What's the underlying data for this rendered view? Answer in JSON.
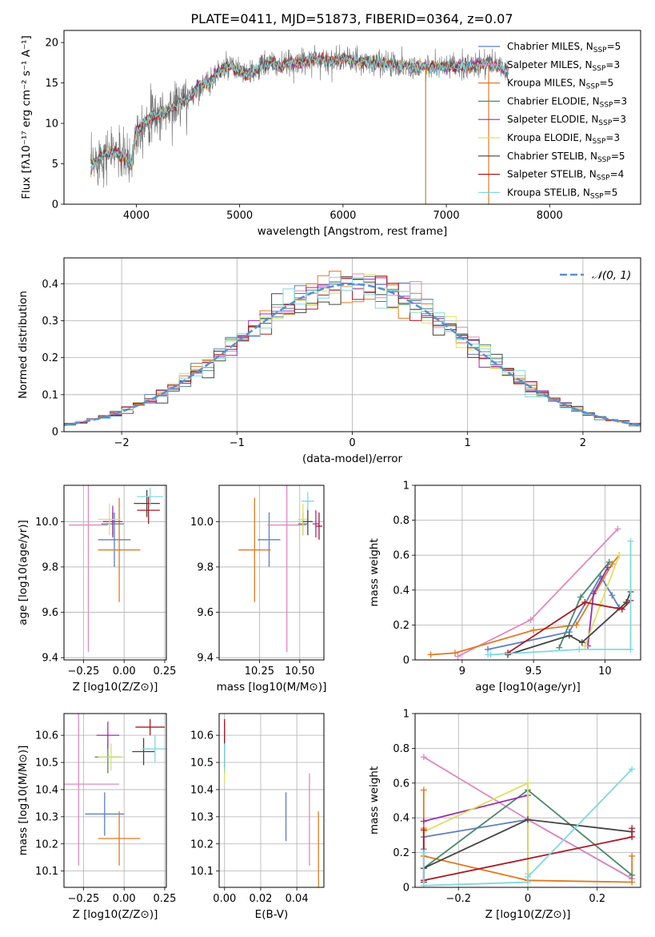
{
  "title": "PLATE=0411, MJD=51873, FIBERID=0364, z=0.07",
  "chart_data": [
    {
      "type": "line",
      "panel": "spectrum",
      "xlabel": "wavelength [Angstrom, rest frame]",
      "ylabel": "Flux [fλ10⁻¹⁷ erg cm⁻² s⁻¹ A⁻¹]",
      "xlim": [
        3300,
        8880
      ],
      "ylim": [
        0,
        21.5
      ],
      "xticks": [
        4000,
        5000,
        6000,
        7000,
        8000
      ],
      "yticks": [
        0,
        5,
        10,
        15,
        20
      ],
      "grid": false,
      "legend_position": "right",
      "data_envelope": {
        "x": [
          3560,
          3650,
          3800,
          3950,
          4000,
          4100,
          4200,
          4300,
          4400,
          4500,
          4600,
          4700,
          4800,
          4900,
          5000,
          5100,
          5200,
          5300,
          5400,
          5500,
          5600,
          5700,
          5800,
          5900,
          6000,
          6200,
          6400,
          6600,
          6800,
          7000,
          7200,
          7400,
          7600
        ],
        "y": [
          4.5,
          6,
          6.5,
          5,
          9,
          10.5,
          11,
          11.5,
          12.5,
          13,
          14.5,
          15,
          16.5,
          17,
          16.5,
          16,
          17,
          17.5,
          17,
          17.5,
          17.5,
          18,
          18,
          17.5,
          18,
          17.5,
          17.5,
          17,
          17,
          17,
          17,
          17.5,
          16.5
        ]
      },
      "series": [
        {
          "name": "Chabrier MILES, N_SSP=5",
          "color": "#5b7fbf"
        },
        {
          "name": "Salpeter MILES, N_SSP=3",
          "color": "#e088c0"
        },
        {
          "name": "Kroupa MILES, N_SSP=5",
          "color": "#e07a22"
        },
        {
          "name": "Chabrier ELODIE, N_SSP=3",
          "color": "#4a8a6a"
        },
        {
          "name": "Salpeter ELODIE, N_SSP=3",
          "color": "#9a2db0"
        },
        {
          "name": "Kroupa ELODIE, N_SSP=3",
          "color": "#dde060"
        },
        {
          "name": "Chabrier STELIB, N_SSP=5",
          "color": "#444444"
        },
        {
          "name": "Salpeter STELIB, N_SSP=4",
          "color": "#aa1a22"
        },
        {
          "name": "Kroupa STELIB, N_SSP=5",
          "color": "#80d8e0"
        }
      ]
    },
    {
      "type": "area",
      "panel": "residuals",
      "xlabel": "(data-model)/error",
      "ylabel": "Normed distribution",
      "xlim": [
        -2.5,
        2.5
      ],
      "ylim": [
        0,
        0.47
      ],
      "xticks": [
        -2,
        -1,
        0,
        1,
        2
      ],
      "yticks": [
        0.0,
        0.1,
        0.2,
        0.3,
        0.4
      ],
      "grid": true,
      "legend": [
        "𝒩(0, 1)"
      ],
      "legend_position": "top-right",
      "normal_curve": {
        "name": "𝒩(0, 1)",
        "mean": 0,
        "sigma": 1
      },
      "histogram_bin_width": 0.1
    },
    {
      "type": "scatter",
      "panel": "age-vs-Z",
      "xlabel": "Z [log10(Z/Z⊙)]",
      "ylabel": "age [log10(age/yr)]",
      "xlim": [
        -0.37,
        0.26
      ],
      "ylim": [
        9.39,
        10.16
      ],
      "xticks": [
        "-0.25",
        "0.00",
        "0.25"
      ],
      "yticks": [
        "9.4",
        "9.6",
        "9.8",
        "10.0"
      ],
      "grid": true,
      "points": [
        {
          "x": -0.06,
          "xerr": 0.1,
          "y": 9.92,
          "yerr": 0.12,
          "color": "#5b7fbf"
        },
        {
          "x": -0.22,
          "xerr": 0.12,
          "y": 9.985,
          "yerr": 0.56,
          "color": "#e088c0"
        },
        {
          "x": -0.03,
          "xerr": 0.13,
          "y": 9.875,
          "yerr": 0.23,
          "color": "#e07a22"
        },
        {
          "x": -0.07,
          "xerr": 0.07,
          "y": 9.99,
          "yerr": 0.05,
          "color": "#4a8a6a"
        },
        {
          "x": -0.07,
          "xerr": 0.06,
          "y": 10.0,
          "yerr": 0.07,
          "color": "#9a2db0"
        },
        {
          "x": -0.09,
          "xerr": 0.07,
          "y": 10.01,
          "yerr": 0.07,
          "color": "#dde060"
        },
        {
          "x": 0.14,
          "xerr": 0.08,
          "y": 10.08,
          "yerr": 0.06,
          "color": "#444444"
        },
        {
          "x": 0.15,
          "xerr": 0.07,
          "y": 10.05,
          "yerr": 0.06,
          "color": "#aa1a22"
        },
        {
          "x": 0.16,
          "xerr": 0.08,
          "y": 10.11,
          "yerr": 0.04,
          "color": "#80d8e0"
        }
      ]
    },
    {
      "type": "scatter",
      "panel": "age-vs-mass",
      "xlabel": "mass [log10(M/M⊙)]",
      "ylabel": "",
      "xlim": [
        10.0,
        10.65
      ],
      "ylim": [
        9.39,
        10.16
      ],
      "xticks": [
        "10.25",
        "10.50"
      ],
      "yticks": [
        "9.4",
        "9.6",
        "9.8",
        "10.0"
      ],
      "grid": true,
      "points": [
        {
          "x": 10.31,
          "xerr": 0.07,
          "y": 9.92,
          "yerr": 0.12,
          "color": "#5b7fbf"
        },
        {
          "x": 10.42,
          "xerr": 0.12,
          "y": 9.985,
          "yerr": 0.56,
          "color": "#e088c0"
        },
        {
          "x": 10.22,
          "xerr": 0.1,
          "y": 9.875,
          "yerr": 0.23,
          "color": "#e07a22"
        },
        {
          "x": 10.52,
          "xerr": 0.03,
          "y": 9.99,
          "yerr": 0.05,
          "color": "#4a8a6a"
        },
        {
          "x": 10.6,
          "xerr": 0.02,
          "y": 9.99,
          "yerr": 0.06,
          "color": "#9a2db0"
        },
        {
          "x": 10.52,
          "xerr": 0.03,
          "y": 10.01,
          "yerr": 0.07,
          "color": "#dde060"
        },
        {
          "x": 10.55,
          "xerr": 0.03,
          "y": 10.0,
          "yerr": 0.06,
          "color": "#444444"
        },
        {
          "x": 10.62,
          "xerr": 0.02,
          "y": 9.98,
          "yerr": 0.06,
          "color": "#aa1a22"
        },
        {
          "x": 10.55,
          "xerr": 0.04,
          "y": 10.09,
          "yerr": 0.04,
          "color": "#80d8e0"
        }
      ]
    },
    {
      "type": "line",
      "panel": "mass-weight-vs-age",
      "xlabel": "age [log10(age/yr)]",
      "ylabel": "mass weight",
      "xlim": [
        8.67,
        10.25
      ],
      "ylim": [
        0,
        1.0
      ],
      "xticks": [
        9.0,
        9.5,
        10.0
      ],
      "yticks": [
        0.0,
        0.2,
        0.4,
        0.6,
        0.8,
        1.0
      ],
      "grid": true,
      "series": [
        {
          "color": "#5b7fbf",
          "x": [
            9.18,
            9.75,
            9.97,
            10.05,
            10.1
          ],
          "y": [
            0.06,
            0.16,
            0.48,
            0.37,
            0.3
          ]
        },
        {
          "color": "#e088c0",
          "x": [
            8.97,
            9.48,
            10.09
          ],
          "y": [
            0.02,
            0.23,
            0.75
          ]
        },
        {
          "color": "#e07a22",
          "x": [
            8.78,
            8.95,
            9.5,
            9.8,
            10.05,
            10.1
          ],
          "y": [
            0.03,
            0.04,
            0.17,
            0.2,
            0.55,
            0.6
          ]
        },
        {
          "color": "#4a8a6a",
          "x": [
            9.68,
            9.83,
            10.03
          ],
          "y": [
            0.07,
            0.36,
            0.56
          ]
        },
        {
          "color": "#9a2db0",
          "x": [
            9.88,
            9.92,
            10.02
          ],
          "y": [
            0.08,
            0.38,
            0.53
          ]
        },
        {
          "color": "#dde060",
          "x": [
            9.86,
            9.97,
            10.1
          ],
          "y": [
            0.08,
            0.32,
            0.6
          ]
        },
        {
          "color": "#444444",
          "x": [
            9.32,
            9.75,
            9.84,
            10.15,
            10.18
          ],
          "y": [
            0.03,
            0.14,
            0.1,
            0.33,
            0.39
          ]
        },
        {
          "color": "#aa1a22",
          "x": [
            9.32,
            9.86,
            10.12,
            10.18
          ],
          "y": [
            0.04,
            0.33,
            0.29,
            0.34
          ]
        },
        {
          "color": "#80d8e0",
          "x": [
            9.18,
            9.2,
            9.82,
            10.18,
            10.18
          ],
          "y": [
            0.03,
            0.03,
            0.06,
            0.06,
            0.68
          ]
        }
      ]
    },
    {
      "type": "scatter",
      "panel": "mass-vs-Z",
      "xlabel": "Z [log10(Z/Z⊙)]",
      "ylabel": "mass [log10(M/M⊙)]",
      "xlim": [
        -0.37,
        0.26
      ],
      "ylim": [
        10.04,
        10.68
      ],
      "xticks": [
        "-0.25",
        "0.00",
        "0.25"
      ],
      "yticks": [
        "10.1",
        "10.2",
        "10.3",
        "10.4",
        "10.5",
        "10.6"
      ],
      "grid": true,
      "points": [
        {
          "x": -0.12,
          "xerr": 0.12,
          "y": 10.31,
          "yerr": 0.08,
          "color": "#5b7fbf"
        },
        {
          "x": -0.28,
          "xerr": 0.25,
          "y": 10.42,
          "yerr": 0.3,
          "color": "#e088c0"
        },
        {
          "x": -0.03,
          "xerr": 0.13,
          "y": 10.22,
          "yerr": 0.1,
          "color": "#e07a22"
        },
        {
          "x": -0.1,
          "xerr": 0.08,
          "y": 10.52,
          "yerr": 0.06,
          "color": "#4a8a6a"
        },
        {
          "x": -0.1,
          "xerr": 0.07,
          "y": 10.6,
          "yerr": 0.05,
          "color": "#9a2db0"
        },
        {
          "x": -0.08,
          "xerr": 0.08,
          "y": 10.52,
          "yerr": 0.05,
          "color": "#dde060"
        },
        {
          "x": 0.12,
          "xerr": 0.07,
          "y": 10.54,
          "yerr": 0.05,
          "color": "#444444"
        },
        {
          "x": 0.16,
          "xerr": 0.09,
          "y": 10.63,
          "yerr": 0.03,
          "color": "#aa1a22"
        },
        {
          "x": 0.19,
          "xerr": 0.08,
          "y": 10.55,
          "yerr": 0.05,
          "color": "#80d8e0"
        }
      ]
    },
    {
      "type": "scatter",
      "panel": "mass-vs-EBV",
      "xlabel": "E(B-V)",
      "ylabel": "",
      "xlim": [
        -0.003,
        0.055
      ],
      "ylim": [
        10.04,
        10.68
      ],
      "xticks": [
        "0.00",
        "0.02",
        "0.04"
      ],
      "yticks": [
        "10.1",
        "10.2",
        "10.3",
        "10.4",
        "10.5",
        "10.6"
      ],
      "grid": true,
      "points": [
        {
          "x": 0.034,
          "y": 10.3,
          "yerr": 0.09,
          "color": "#5b7fbf"
        },
        {
          "x": 0.047,
          "y": 10.29,
          "yerr": 0.17,
          "color": "#e088c0"
        },
        {
          "x": 0.052,
          "y": 10.18,
          "yerr": 0.14,
          "color": "#e07a22"
        },
        {
          "x": 0.0,
          "y": 10.52,
          "yerr": 0.06,
          "color": "#4a8a6a"
        },
        {
          "x": 0.0,
          "y": 10.61,
          "yerr": 0.04,
          "color": "#9a2db0"
        },
        {
          "x": 0.0,
          "y": 10.48,
          "yerr": 0.06,
          "color": "#dde060"
        },
        {
          "x": 0.0,
          "y": 10.54,
          "yerr": 0.06,
          "color": "#444444"
        },
        {
          "x": 0.0,
          "y": 10.62,
          "yerr": 0.04,
          "color": "#aa1a22"
        },
        {
          "x": 0.0,
          "y": 10.52,
          "yerr": 0.05,
          "color": "#80d8e0"
        }
      ]
    },
    {
      "type": "line",
      "panel": "mass-weight-vs-Z",
      "xlabel": "Z [log10(Z/Z⊙)]",
      "ylabel": "mass weight",
      "xlim": [
        -0.325,
        0.325
      ],
      "ylim": [
        0,
        1.0
      ],
      "xticks": [
        -0.2,
        0.0,
        0.2
      ],
      "yticks": [
        0.0,
        0.2,
        0.4,
        0.6,
        0.8,
        1.0
      ],
      "grid": true,
      "series": [
        {
          "color": "#5b7fbf",
          "x": [
            -0.3,
            -0.3,
            0.0,
            0.3
          ],
          "y": [
            0.22,
            0.29,
            0.39,
            0.05
          ]
        },
        {
          "color": "#e088c0",
          "x": [
            -0.3,
            0.0,
            0.3
          ],
          "y": [
            0.75,
            0.39,
            0.05
          ]
        },
        {
          "color": "#e07a22",
          "x": [
            -0.3,
            -0.3,
            -0.3,
            0.0,
            0.3,
            0.3
          ],
          "y": [
            0.56,
            0.34,
            0.18,
            0.04,
            0.03,
            0.18
          ]
        },
        {
          "color": "#4a8a6a",
          "x": [
            -0.3,
            0.0,
            0.3
          ],
          "y": [
            0.11,
            0.56,
            0.07
          ]
        },
        {
          "color": "#9a2db0",
          "x": [
            -0.3,
            0.0,
            0.0
          ],
          "y": [
            0.38,
            0.53,
            0.08
          ]
        },
        {
          "color": "#dde060",
          "x": [
            -0.3,
            0.0,
            0.0
          ],
          "y": [
            0.32,
            0.6,
            0.08
          ]
        },
        {
          "color": "#444444",
          "x": [
            -0.3,
            -0.3,
            0.0,
            0.3
          ],
          "y": [
            0.03,
            0.11,
            0.39,
            0.32
          ]
        },
        {
          "color": "#aa1a22",
          "x": [
            -0.3,
            -0.3,
            0.3,
            0.3
          ],
          "y": [
            0.33,
            0.04,
            0.29,
            0.34
          ]
        },
        {
          "color": "#80d8e0",
          "x": [
            -0.3,
            -0.3,
            0.0,
            0.0,
            0.3
          ],
          "y": [
            0.2,
            0.01,
            0.03,
            0.06,
            0.68
          ]
        }
      ]
    }
  ]
}
